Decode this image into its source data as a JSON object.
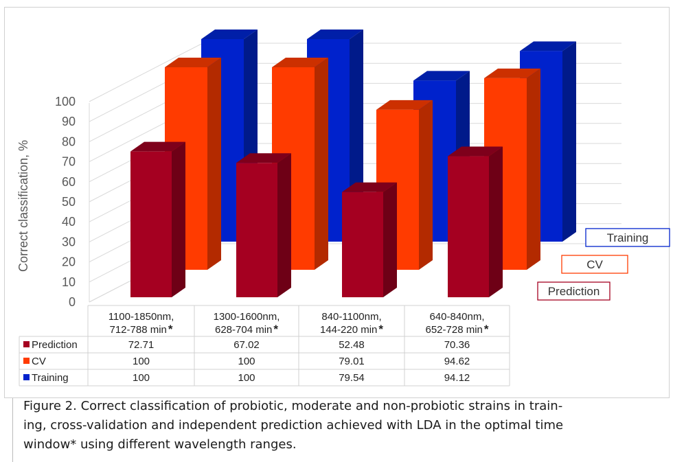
{
  "chart_data": {
    "type": "bar",
    "categories": [
      {
        "line1": "1100-1850nm,",
        "line2": "712-788 min",
        "mark": "*"
      },
      {
        "line1": "1300-1600nm,",
        "line2": "628-704 min",
        "mark": "*"
      },
      {
        "line1": "840-1100nm,",
        "line2": "144-220 min",
        "mark": "*"
      },
      {
        "line1": "640-840nm,",
        "line2": "652-728 min",
        "mark": "*"
      }
    ],
    "series": [
      {
        "name": "Prediction",
        "values": [
          72.71,
          67.02,
          52.48,
          70.36
        ],
        "display": [
          "72.71",
          "67.02",
          "52.48",
          "70.36"
        ],
        "front": "#a50021",
        "side": "#6e0016",
        "top": "#7e001b"
      },
      {
        "name": "CV",
        "values": [
          100,
          100,
          79.01,
          94.62
        ],
        "display": [
          "100",
          "100",
          "79.01",
          "94.62"
        ],
        "front": "#ff3b00",
        "side": "#b32a00",
        "top": "#cc3000"
      },
      {
        "name": "Training",
        "values": [
          100,
          100,
          79.54,
          94.12
        ],
        "display": [
          "100",
          "100",
          "79.54",
          "94.12"
        ],
        "front": "#0022cc",
        "side": "#001a8a",
        "top": "#001fa8"
      }
    ],
    "ylabel": "Correct classification, %",
    "ylim": [
      0,
      100
    ],
    "yticks": [
      "0",
      "10",
      "20",
      "30",
      "40",
      "50",
      "60",
      "70",
      "80",
      "90",
      "100"
    ],
    "grid": true,
    "legend": "right, staggered by depth",
    "data_table": true
  },
  "caption": {
    "line1": "Figure 2. Correct classification of probiotic, moderate and non-probiotic strains in train-",
    "line2": "ing, cross-validation and independent prediction achieved with LDA in the optimal time",
    "line3": "window* using different wavelength ranges."
  }
}
